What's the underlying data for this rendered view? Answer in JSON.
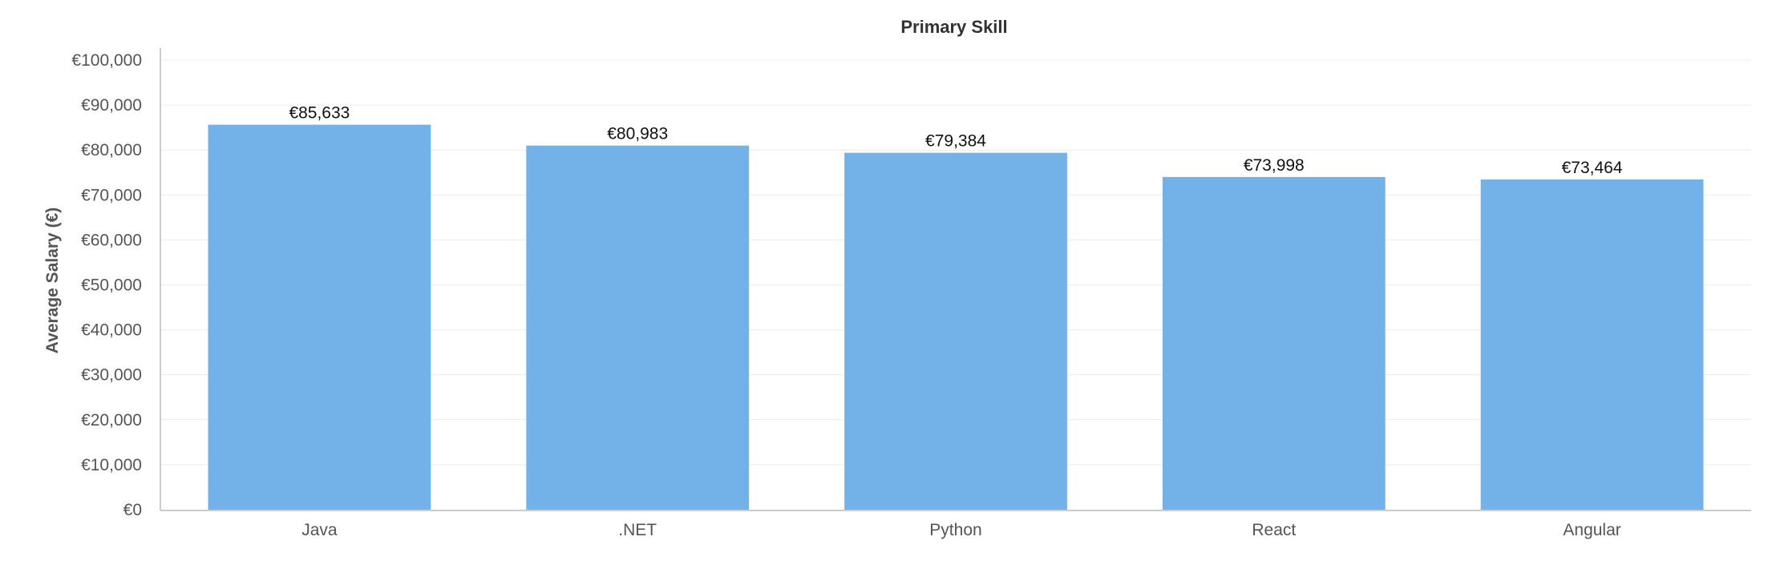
{
  "chart_data": {
    "type": "bar",
    "title": "Primary Skill",
    "xlabel": "",
    "ylabel": "Average Salary (€)",
    "categories": [
      "Java",
      ".NET",
      "Python",
      "React",
      "Angular"
    ],
    "values": [
      85633,
      80983,
      79384,
      73998,
      73464
    ],
    "value_labels": [
      "€85,633",
      "€80,983",
      "€79,384",
      "€73,998",
      "€73,464"
    ],
    "ylim": [
      0,
      100000
    ],
    "y_ticks": [
      0,
      10000,
      20000,
      30000,
      40000,
      50000,
      60000,
      70000,
      80000,
      90000,
      100000
    ],
    "y_tick_labels": [
      "€0",
      "€10,000",
      "€20,000",
      "€30,000",
      "€40,000",
      "€50,000",
      "€60,000",
      "€70,000",
      "€80,000",
      "€90,000",
      "€100,000"
    ],
    "grid": true,
    "legend": "none",
    "colors": {
      "bar": "#72b2e9",
      "grid": "#ececec",
      "axis": "#cccccc"
    }
  }
}
